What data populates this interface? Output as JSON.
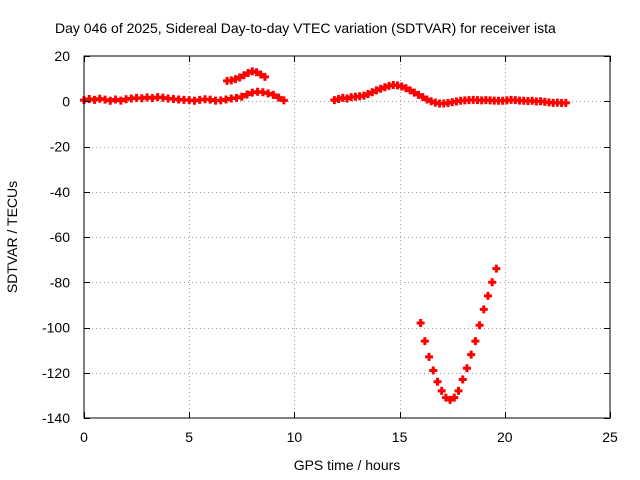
{
  "chart_data": {
    "type": "scatter",
    "title": "Day 046 of 2025, Sidereal Day-to-day VTEC variation (SDTVAR) for receiver ista",
    "xlabel": "GPS time / hours",
    "ylabel": "SDTVAR / TECUs",
    "xlim": [
      0,
      25
    ],
    "ylim": [
      -140,
      20
    ],
    "x_ticks": [
      0,
      5,
      10,
      15,
      20,
      25
    ],
    "y_ticks": [
      20,
      0,
      -20,
      -40,
      -60,
      -80,
      -100,
      -120,
      -140
    ],
    "x_tick_labels": [
      "0",
      "5",
      "10",
      "15",
      "20",
      "25"
    ],
    "y_tick_labels": [
      "20",
      "0",
      "-20",
      "-40",
      "-60",
      "-80",
      "-100",
      "-120",
      "-140"
    ],
    "grid": true,
    "marker": "plus",
    "color": "#ff0000",
    "series": [
      {
        "points": [
          [
            0.0,
            0.5
          ],
          [
            0.25,
            1.0
          ],
          [
            0.5,
            0.6
          ],
          [
            0.75,
            1.1
          ],
          [
            1.0,
            0.7
          ],
          [
            1.25,
            0.2
          ],
          [
            1.5,
            0.8
          ],
          [
            1.75,
            0.3
          ],
          [
            2.0,
            0.9
          ],
          [
            2.25,
            1.2
          ],
          [
            2.5,
            1.5
          ],
          [
            2.75,
            1.3
          ],
          [
            3.0,
            1.7
          ],
          [
            3.25,
            1.4
          ],
          [
            3.5,
            1.8
          ],
          [
            3.75,
            1.6
          ],
          [
            4.0,
            1.2
          ],
          [
            4.25,
            1.0
          ],
          [
            4.5,
            0.8
          ],
          [
            4.75,
            0.6
          ],
          [
            5.0,
            0.5
          ],
          [
            5.25,
            0.2
          ],
          [
            5.5,
            0.6
          ],
          [
            5.75,
            0.9
          ],
          [
            6.0,
            0.7
          ],
          [
            6.25,
            0.3
          ],
          [
            6.5,
            0.4
          ],
          [
            6.75,
            0.8
          ],
          [
            7.0,
            1.2
          ],
          [
            7.25,
            1.5
          ],
          [
            7.5,
            2.0
          ],
          [
            7.75,
            3.0
          ],
          [
            8.0,
            3.8
          ],
          [
            8.25,
            4.2
          ],
          [
            8.5,
            4.0
          ],
          [
            8.75,
            3.5
          ],
          [
            9.0,
            2.8
          ],
          [
            9.25,
            1.6
          ],
          [
            9.5,
            0.4
          ],
          [
            6.8,
            9.0
          ],
          [
            7.0,
            9.2
          ],
          [
            7.2,
            9.8
          ],
          [
            7.4,
            10.5
          ],
          [
            7.6,
            11.5
          ],
          [
            7.8,
            12.5
          ],
          [
            8.0,
            13.2
          ],
          [
            8.2,
            12.8
          ],
          [
            8.4,
            11.8
          ],
          [
            8.6,
            10.8
          ],
          [
            11.9,
            0.5
          ],
          [
            12.1,
            1.0
          ],
          [
            12.3,
            1.5
          ],
          [
            12.5,
            1.2
          ],
          [
            12.7,
            1.8
          ],
          [
            12.9,
            2.0
          ],
          [
            13.1,
            2.2
          ],
          [
            13.3,
            2.5
          ],
          [
            13.5,
            3.2
          ],
          [
            13.7,
            4.0
          ],
          [
            13.9,
            4.8
          ],
          [
            14.1,
            5.5
          ],
          [
            14.3,
            6.2
          ],
          [
            14.5,
            6.8
          ],
          [
            14.7,
            7.2
          ],
          [
            14.9,
            7.0
          ],
          [
            15.1,
            6.5
          ],
          [
            15.3,
            5.8
          ],
          [
            15.5,
            4.8
          ],
          [
            15.7,
            3.8
          ],
          [
            15.9,
            2.8
          ],
          [
            16.1,
            1.8
          ],
          [
            16.3,
            0.8
          ],
          [
            16.5,
            0.0
          ],
          [
            16.7,
            -0.6
          ],
          [
            16.9,
            -1.0
          ],
          [
            17.1,
            -1.0
          ],
          [
            17.3,
            -0.8
          ],
          [
            17.5,
            -0.4
          ],
          [
            17.7,
            -0.1
          ],
          [
            17.9,
            0.2
          ],
          [
            18.1,
            0.4
          ],
          [
            18.3,
            0.5
          ],
          [
            18.5,
            0.6
          ],
          [
            18.7,
            0.5
          ],
          [
            18.9,
            0.4
          ],
          [
            19.1,
            0.5
          ],
          [
            19.3,
            0.4
          ],
          [
            19.5,
            0.3
          ],
          [
            19.7,
            0.2
          ],
          [
            19.9,
            0.2
          ],
          [
            20.1,
            0.4
          ],
          [
            20.3,
            0.6
          ],
          [
            20.5,
            0.5
          ],
          [
            20.7,
            0.3
          ],
          [
            20.9,
            0.2
          ],
          [
            21.1,
            0.1
          ],
          [
            21.3,
            0.2
          ],
          [
            21.5,
            -0.1
          ],
          [
            21.7,
            0.0
          ],
          [
            21.9,
            -0.3
          ],
          [
            22.1,
            -0.5
          ],
          [
            22.3,
            -0.7
          ],
          [
            22.5,
            -0.6
          ],
          [
            22.7,
            -0.8
          ],
          [
            22.9,
            -0.7
          ],
          [
            16.0,
            -98.0
          ],
          [
            16.2,
            -106.0
          ],
          [
            16.4,
            -113.0
          ],
          [
            16.6,
            -119.0
          ],
          [
            16.8,
            -124.0
          ],
          [
            17.0,
            -128.0
          ],
          [
            17.2,
            -131.0
          ],
          [
            17.4,
            -132.0
          ],
          [
            17.6,
            -131.0
          ],
          [
            17.8,
            -128.0
          ],
          [
            18.0,
            -123.0
          ],
          [
            18.2,
            -118.0
          ],
          [
            18.4,
            -112.0
          ],
          [
            18.6,
            -106.0
          ],
          [
            18.8,
            -99.0
          ],
          [
            19.0,
            -92.0
          ],
          [
            19.2,
            -86.0
          ],
          [
            19.4,
            -80.0
          ],
          [
            19.6,
            -74.0
          ]
        ]
      }
    ]
  }
}
